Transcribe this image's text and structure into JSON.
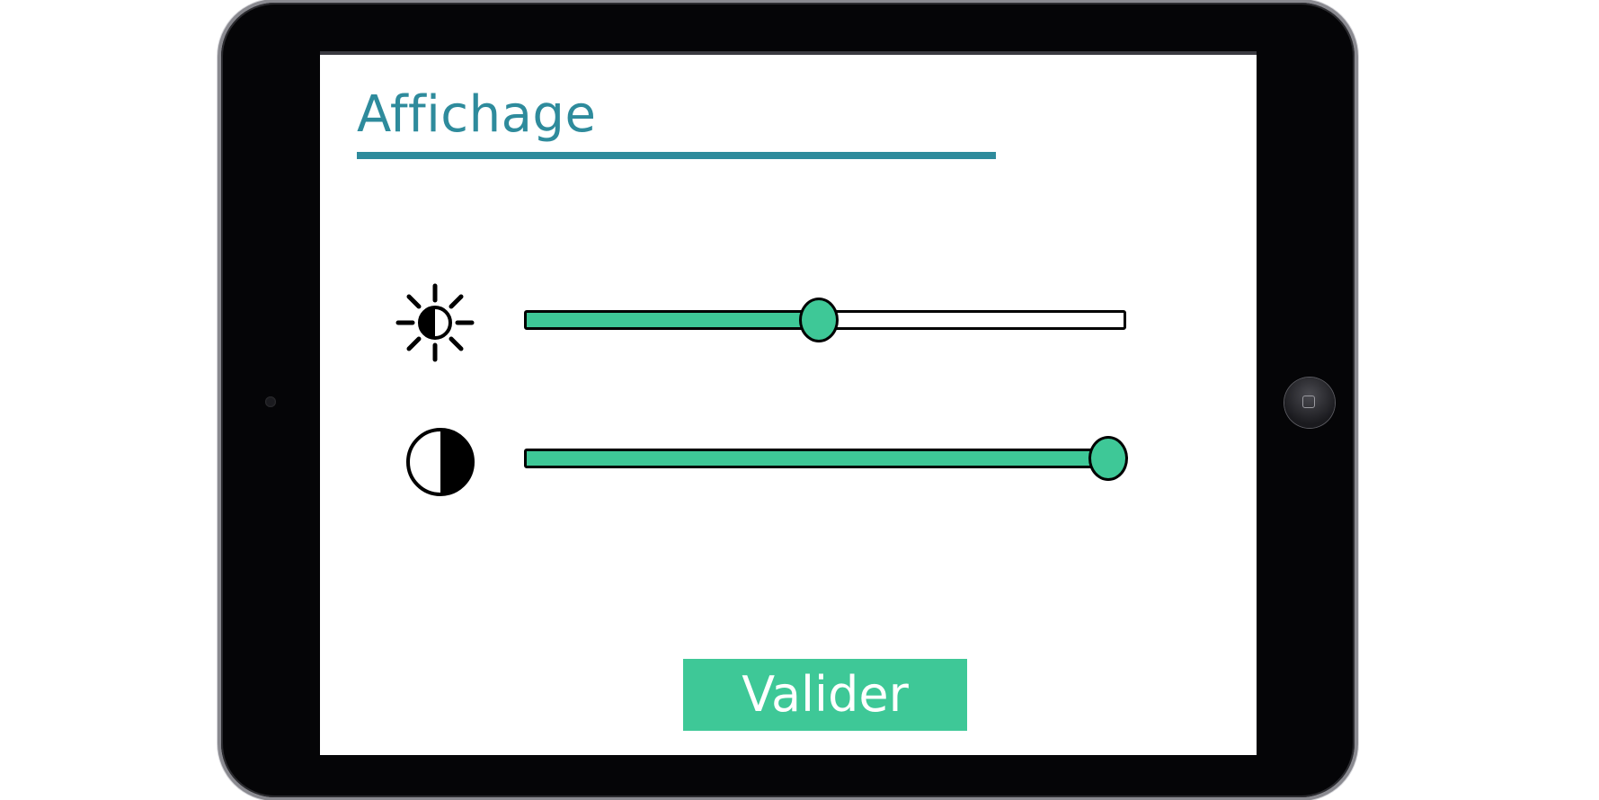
{
  "screen": {
    "title": "Affichage",
    "accent_color": "#2e8b9c",
    "control_color": "#3ec897"
  },
  "brightness": {
    "icon": "brightness-icon",
    "value_fraction": 0.49
  },
  "contrast": {
    "icon": "contrast-icon",
    "value_fraction": 0.97
  },
  "actions": {
    "validate_label": "Valider"
  },
  "device": {
    "home_button_icon": "home-square-icon"
  }
}
